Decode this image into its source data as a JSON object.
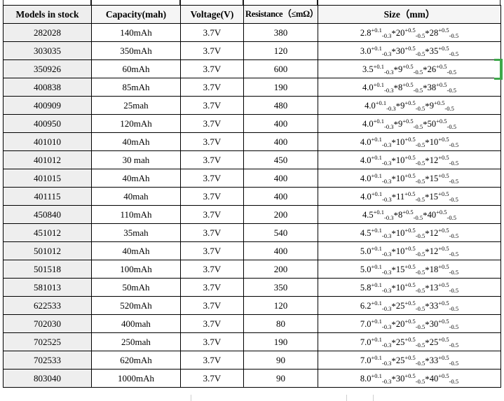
{
  "table": {
    "columns": [
      {
        "key": "model",
        "label": "Models in stock"
      },
      {
        "key": "capacity",
        "label": "Capacity(mah)"
      },
      {
        "key": "voltage",
        "label": "Voltage(V)"
      },
      {
        "key": "resistance",
        "label": "Resistance（≤mΩ）"
      },
      {
        "key": "size",
        "label": "Size（mm）"
      }
    ],
    "size_separator": "*",
    "rows": [
      {
        "model": "282028",
        "capacity": "140mAh",
        "voltage": "3.7V",
        "resistance": "380",
        "size": [
          [
            "2.8",
            "+0.1",
            "-0.3"
          ],
          [
            "20",
            "+0.5",
            "-0.5"
          ],
          [
            "28",
            "+0.5",
            "-0.5"
          ]
        ],
        "marker": false
      },
      {
        "model": "303035",
        "capacity": "350mAh",
        "voltage": "3.7V",
        "resistance": "120",
        "size": [
          [
            "3.0",
            "+0.1",
            "-0.3"
          ],
          [
            "30",
            "+0.5",
            "-0.5"
          ],
          [
            "35",
            "+0.5",
            "-0.5"
          ]
        ],
        "marker": false
      },
      {
        "model": "350926",
        "capacity": "60mAh",
        "voltage": "3.7V",
        "resistance": "600",
        "size": [
          [
            "3.5",
            "+0.1",
            "-0.3"
          ],
          [
            "9",
            "+0.5",
            "-0.5"
          ],
          [
            "26",
            "+0.5",
            "-0.5"
          ]
        ],
        "marker": false
      },
      {
        "model": "400838",
        "capacity": "85mAh",
        "voltage": "3.7V",
        "resistance": "190",
        "size": [
          [
            "4.0",
            "+0.1",
            "-0.3"
          ],
          [
            "8",
            "+0.5",
            "-0.5"
          ],
          [
            "38",
            "+0.5",
            "-0.5"
          ]
        ],
        "marker": false
      },
      {
        "model": "400909",
        "capacity": "25mah",
        "voltage": "3.7V",
        "resistance": "480",
        "size": [
          [
            "4.0",
            "+0.1",
            "-0.3"
          ],
          [
            "9",
            "+0.5",
            "-0.5"
          ],
          [
            "9",
            "+0.5",
            "-0.5"
          ]
        ],
        "marker": false
      },
      {
        "model": "400950",
        "capacity": "120mAh",
        "voltage": "3.7V",
        "resistance": "400",
        "size": [
          [
            "4.0",
            "+0.1",
            "-0.3"
          ],
          [
            "9",
            "+0.5",
            "-0.5"
          ],
          [
            "50",
            "+0.5",
            "-0.5"
          ]
        ],
        "marker": false
      },
      {
        "model": "401010",
        "capacity": "40mAh",
        "voltage": "3.7V",
        "resistance": "400",
        "size": [
          [
            "4.0",
            "+0.1",
            "-0.3"
          ],
          [
            "10",
            "+0.5",
            "-0.5"
          ],
          [
            "10",
            "+0.5",
            "-0.5"
          ]
        ],
        "marker": false
      },
      {
        "model": "401012",
        "capacity": "30 mah",
        "voltage": "3.7V",
        "resistance": "450",
        "size": [
          [
            "4.0",
            "+0.1",
            "-0.3"
          ],
          [
            "10",
            "+0.5",
            "-0.5"
          ],
          [
            "12",
            "+0.5",
            "-0.5"
          ]
        ],
        "marker": false
      },
      {
        "model": "401015",
        "capacity": "40mAh",
        "voltage": "3.7V",
        "resistance": "400",
        "size": [
          [
            "4.0",
            "+0.1",
            "-0.3"
          ],
          [
            "10",
            "+0.5",
            "-0.5"
          ],
          [
            "15",
            "+0.5",
            "-0.5"
          ]
        ],
        "marker": false
      },
      {
        "model": "401115",
        "capacity": "40mah",
        "voltage": "3.7V",
        "resistance": "400",
        "size": [
          [
            "4.0",
            "+0.1",
            "-0.3"
          ],
          [
            "11",
            "+0.5",
            "-0.5"
          ],
          [
            "15",
            "+0.5",
            "-0.5"
          ]
        ],
        "marker": false
      },
      {
        "model": "450840",
        "capacity": "110mAh",
        "voltage": "3.7V",
        "resistance": "200",
        "size": [
          [
            "4.5",
            "+0.1",
            "-0.3"
          ],
          [
            "8",
            "+0.5",
            "-0.5"
          ],
          [
            "40",
            "+0.5",
            "-0.5"
          ]
        ],
        "marker": false
      },
      {
        "model": "451012",
        "capacity": "35mah",
        "voltage": "3.7V",
        "resistance": "540",
        "size": [
          [
            "4.5",
            "+0.1",
            "-0.3"
          ],
          [
            "10",
            "+0.5",
            "-0.5"
          ],
          [
            "12",
            "+0.5",
            "-0.5"
          ]
        ],
        "marker": false
      },
      {
        "model": "501012",
        "capacity": "40mAh",
        "voltage": "3.7V",
        "resistance": "400",
        "size": [
          [
            "5.0",
            "+0.1",
            "-0.3"
          ],
          [
            "10",
            "+0.5",
            "-0.5"
          ],
          [
            "12",
            "+0.5",
            "-0.5"
          ]
        ],
        "marker": false
      },
      {
        "model": "501518",
        "capacity": "100mAh",
        "voltage": "3.7V",
        "resistance": "200",
        "size": [
          [
            "5.0",
            "+0.1",
            "-0.3"
          ],
          [
            "15",
            "+0.5",
            "-0.5"
          ],
          [
            "18",
            "+0.5",
            "-0.5"
          ]
        ],
        "marker": false
      },
      {
        "model": "581013",
        "capacity": "50mAh",
        "voltage": "3.7V",
        "resistance": "350",
        "size": [
          [
            "5.8",
            "+0.1",
            "-0.3"
          ],
          [
            "10",
            "+0.5",
            "-0.5"
          ],
          [
            "13",
            "+0.5",
            "-0.5"
          ]
        ],
        "marker": true
      },
      {
        "model": "622533",
        "capacity": "520mAh",
        "voltage": "3.7V",
        "resistance": "120",
        "size": [
          [
            "6.2",
            "+0.1",
            "-0.3"
          ],
          [
            "25",
            "+0.5",
            "-0.5"
          ],
          [
            "33",
            "+0.5",
            "-0.5"
          ]
        ],
        "marker": false
      },
      {
        "model": "702030",
        "capacity": "400mah",
        "voltage": "3.7V",
        "resistance": "80",
        "size": [
          [
            "7.0",
            "+0.1",
            "-0.3"
          ],
          [
            "20",
            "+0.5",
            "-0.5"
          ],
          [
            "30",
            "+0.5",
            "-0.5"
          ]
        ],
        "marker": false
      },
      {
        "model": "702525",
        "capacity": "250mah",
        "voltage": "3.7V",
        "resistance": "190",
        "size": [
          [
            "7.0",
            "+0.1",
            "-0.3"
          ],
          [
            "25",
            "+0.5",
            "-0.5"
          ],
          [
            "25",
            "+0.5",
            "-0.5"
          ]
        ],
        "marker": true
      },
      {
        "model": "702533",
        "capacity": "620mAh",
        "voltage": "3.7V",
        "resistance": "90",
        "size": [
          [
            "7.0",
            "+0.1",
            "-0.3"
          ],
          [
            "25",
            "+0.5",
            "-0.5"
          ],
          [
            "33",
            "+0.5",
            "-0.5"
          ]
        ],
        "marker": false
      },
      {
        "model": "803040",
        "capacity": "1000mAh",
        "voltage": "3.7V",
        "resistance": "90",
        "size": [
          [
            "8.0",
            "+0.1",
            "-0.3"
          ],
          [
            "30",
            "+0.5",
            "-0.5"
          ],
          [
            "40",
            "+0.5",
            "-0.5"
          ]
        ],
        "marker": true
      }
    ]
  },
  "annotations": {
    "bracket_row_model": "350926",
    "bracket_row_index": 2,
    "marker_rows": [
      "581013",
      "702525",
      "803040"
    ],
    "bracket_color": "#3da84a",
    "triangle_color": "#217d21"
  },
  "colors": {
    "border": "#000000",
    "first_column_bg": "#eeeeee",
    "header_bg": "#f5f5f5",
    "page_bg": "#ffffff"
  }
}
